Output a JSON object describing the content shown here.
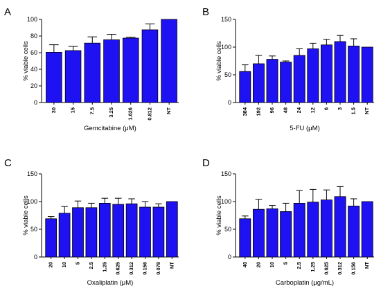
{
  "colors": {
    "bar": "#1f12f2",
    "axis": "#000000"
  },
  "chart_data": [
    {
      "panel": "A",
      "type": "bar",
      "categories": [
        "30",
        "15",
        "7.5",
        "3.25",
        "1.626",
        "0.812",
        "NT"
      ],
      "values": [
        60.5,
        62.5,
        71.5,
        75.5,
        77.5,
        87.5,
        100
      ],
      "errors": [
        9,
        5,
        7.5,
        6.5,
        1,
        7,
        0
      ],
      "ylim": [
        0,
        100
      ],
      "yticks": [
        "0",
        "20",
        "40",
        "60",
        "80",
        "100"
      ],
      "ylabel": "% viable cells",
      "xlabel": "Gemcitabine (μM)",
      "grid": false
    },
    {
      "panel": "B",
      "type": "bar",
      "categories": [
        "384",
        "192",
        "96",
        "48",
        "24",
        "12",
        "6",
        "3",
        "1.5",
        "NT"
      ],
      "values": [
        56,
        70,
        78,
        73,
        85,
        97,
        104,
        110,
        102,
        100
      ],
      "errors": [
        12,
        15,
        6,
        2,
        12,
        10,
        10,
        11,
        13,
        0
      ],
      "ylim": [
        0,
        150
      ],
      "yticks": [
        "0",
        "50",
        "100",
        "150"
      ],
      "ylabel": "% viable cells",
      "xlabel": "5-FU (μM)",
      "grid": false
    },
    {
      "panel": "C",
      "type": "bar",
      "categories": [
        "20",
        "10",
        "5",
        "2.5",
        "1.25",
        "0.625",
        "0.312",
        "0.156",
        "0.078",
        "NT"
      ],
      "values": [
        69,
        79,
        89,
        89,
        97,
        95,
        96,
        90,
        90,
        100
      ],
      "errors": [
        4,
        12,
        12,
        8,
        9,
        11,
        9,
        10,
        6,
        0
      ],
      "ylim": [
        0,
        150
      ],
      "yticks": [
        "0",
        "50",
        "100",
        "150"
      ],
      "ylabel": "% viable cells",
      "xlabel": "Oxaliplatin (μM)",
      "grid": false
    },
    {
      "panel": "D",
      "type": "bar",
      "categories": [
        "40",
        "20",
        "10",
        "5",
        "2.5",
        "1.25",
        "0.625",
        "0.312",
        "0.156",
        "NT"
      ],
      "values": [
        69,
        86,
        87,
        82,
        97,
        99,
        103,
        109,
        92,
        100
      ],
      "errors": [
        5,
        18,
        6,
        15,
        23,
        23,
        18,
        18,
        13,
        0
      ],
      "ylim": [
        0,
        150
      ],
      "yticks": [
        "0",
        "50",
        "100",
        "150"
      ],
      "ylabel": "% viable cells",
      "xlabel": "Carboplatin (μg/mL)",
      "grid": false
    }
  ]
}
